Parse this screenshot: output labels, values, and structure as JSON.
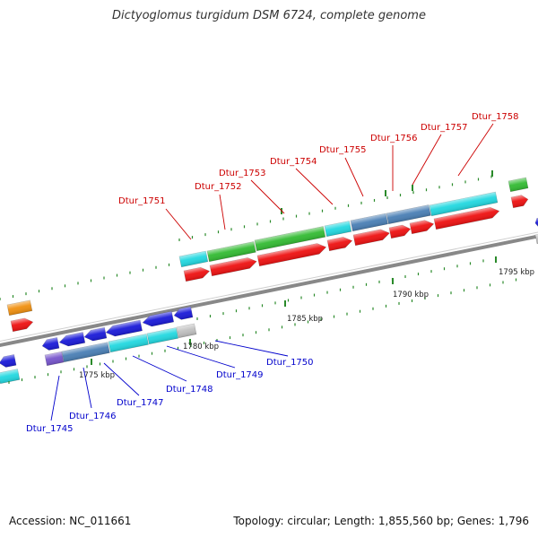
{
  "title": "Dictyoglomus turgidum DSM 6724, complete genome",
  "footer": {
    "accession": "Accession: NC_011661",
    "summary": "Topology: circular; Length: 1,855,560 bp; Genes: 1,796"
  },
  "kbp_labels": [
    "1775 kbp",
    "1780 kbp",
    "1785 kbp",
    "1790 kbp",
    "1795 kbp"
  ],
  "upper_track_labels": [
    "Dtur_1751",
    "Dtur_1752",
    "Dtur_1753",
    "Dtur_1754",
    "Dtur_1755",
    "Dtur_1756",
    "Dtur_1757",
    "Dtur_1758"
  ],
  "lower_track_labels": [
    "Dtur_1745",
    "Dtur_1746",
    "Dtur_1747",
    "Dtur_1748",
    "Dtur_1749",
    "Dtur_1750"
  ],
  "colors": {
    "forward_label": "#cc0000",
    "reverse_label": "#0000cc",
    "red_gene": "#ee1111",
    "blue_gene": "#1a1ad8",
    "green_gene": "#33bb33",
    "cyan_gene": "#22d8e0",
    "steel_gene": "#4a7fb5",
    "orange_gene": "#f09010",
    "gray_gene": "#c0c0c0",
    "purple_gene": "#7755cc",
    "backbone": "#888888",
    "tick": "#2a8a2a"
  }
}
